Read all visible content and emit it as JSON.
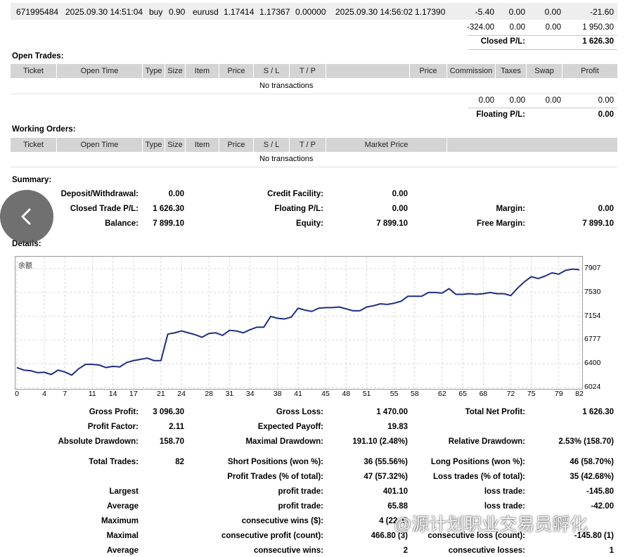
{
  "closed_row": {
    "ticket": "671995484",
    "open_time": "2025.09.30 14:51:04",
    "type": "buy",
    "size": "0.90",
    "item": "eurusd",
    "price": "1.17414",
    "sl": "1.17367",
    "tp": "0.00000",
    "close_time": "2025.09.30 14:56:02",
    "close_price": "1.17390",
    "commission": "-5.40",
    "taxes": "0.00",
    "swap": "0.00",
    "profit": "-21.60"
  },
  "closed_totals": {
    "commission": "-324.00",
    "taxes": "0.00",
    "swap": "0.00",
    "profit": "1 950.30",
    "pl_label": "Closed P/L:",
    "pl_value": "1 626.30"
  },
  "open_trades": {
    "title": "Open Trades:",
    "headers": [
      "Ticket",
      "Open Time",
      "Type",
      "Size",
      "Item",
      "Price",
      "S / L",
      "T / P",
      "",
      "Price",
      "Commission",
      "Taxes",
      "Swap",
      "Profit"
    ],
    "empty": "No transactions",
    "totals": {
      "commission": "0.00",
      "taxes": "0.00",
      "swap": "0.00",
      "profit": "0.00"
    },
    "floating_label": "Floating P/L:",
    "floating_value": "0.00"
  },
  "working_orders": {
    "title": "Working Orders:",
    "headers": [
      "Ticket",
      "Open Time",
      "Type",
      "Size",
      "Item",
      "Price",
      "S / L",
      "T / P",
      "Market Price"
    ],
    "empty": "No transactions"
  },
  "summary": {
    "title": "Summary:",
    "deposit_label": "Deposit/Withdrawal:",
    "deposit_value": "0.00",
    "credit_label": "Credit Facility:",
    "credit_value": "0.00",
    "closed_label": "Closed Trade P/L:",
    "closed_value": "1 626.30",
    "floating_label": "Floating P/L:",
    "floating_value": "0.00",
    "margin_label": "Margin:",
    "margin_value": "0.00",
    "balance_label": "Balance:",
    "balance_value": "7 899.10",
    "equity_label": "Equity:",
    "equity_value": "7 899.10",
    "free_margin_label": "Free Margin:",
    "free_margin_value": "7 899.10"
  },
  "details": {
    "title": "Details:"
  },
  "chart_data": {
    "type": "line",
    "title": "余额",
    "series": [
      {
        "values": [
          6340,
          6300,
          6290,
          6260,
          6265,
          6230,
          6300,
          6270,
          6220,
          6320,
          6390,
          6390,
          6380,
          6340,
          6360,
          6350,
          6420,
          6450,
          6470,
          6490,
          6450,
          6450,
          6870,
          6890,
          6920,
          6890,
          6860,
          6820,
          6880,
          6890,
          6850,
          6930,
          6920,
          6890,
          6940,
          6980,
          6980,
          7150,
          7120,
          7110,
          7140,
          7280,
          7250,
          7230,
          7280,
          7290,
          7290,
          7300,
          7270,
          7240,
          7240,
          7300,
          7320,
          7350,
          7340,
          7360,
          7390,
          7470,
          7470,
          7470,
          7530,
          7530,
          7520,
          7590,
          7500,
          7500,
          7510,
          7500,
          7510,
          7530,
          7510,
          7510,
          7480,
          7600,
          7700,
          7780,
          7750,
          7790,
          7840,
          7820,
          7880,
          7900,
          7890
        ]
      }
    ],
    "y_ticks": [
      "7907",
      "7530",
      "7154",
      "6777",
      "6400",
      "6024"
    ],
    "x_ticks": [
      "0",
      "4",
      "7",
      "11",
      "14",
      "17",
      "21",
      "24",
      "28",
      "31",
      "34",
      "38",
      "41",
      "45",
      "48",
      "51",
      "55",
      "58",
      "62",
      "65",
      "68",
      "72",
      "75",
      "79",
      "82"
    ],
    "xlim": [
      0,
      82
    ],
    "ylim": [
      6024,
      7907
    ],
    "grid": true,
    "color": "#1f2e82"
  },
  "stats": {
    "row1": [
      [
        "Gross Profit:",
        "3 096.30"
      ],
      [
        "Gross Loss:",
        "1 470.00"
      ],
      [
        "Total Net Profit:",
        "1 626.30"
      ]
    ],
    "row2": [
      [
        "Profit Factor:",
        "2.11"
      ],
      [
        "Expected Payoff:",
        "19.83"
      ]
    ],
    "row3": [
      [
        "Absolute Drawdown:",
        "158.70"
      ],
      [
        "Maximal Drawdown:",
        "191.10 (2.48%)"
      ],
      [
        "Relative Drawdown:",
        "2.53% (158.70)"
      ]
    ],
    "row4": [
      [
        "Total Trades:",
        "82"
      ],
      [
        "Short Positions (won %):",
        "36 (55.56%)"
      ],
      [
        "Long Positions (won %):",
        "46 (58.70%)"
      ]
    ],
    "row5": [
      [
        "Profit Trades (% of total):",
        "47 (57.32%)"
      ],
      [
        "Loss trades (% of total):",
        "35 (42.68%)"
      ]
    ],
    "row6": [
      "Largest",
      "profit trade:",
      "401.10",
      "loss trade:",
      "-145.80"
    ],
    "row7": [
      "Average",
      "profit trade:",
      "65.88",
      "loss trade:",
      "-42.00"
    ],
    "row8": [
      "Maximum",
      "consecutive wins ($):",
      "4 (22  .C",
      "",
      ""
    ],
    "row9": [
      "Maximal",
      "consecutive profit (count):",
      "466.80 (3)",
      "consecutive loss (count):",
      "-145.80 (1)"
    ],
    "row10": [
      "Average",
      "consecutive wins:",
      "2",
      "consecutive losses:",
      "1"
    ]
  },
  "watermark": "@源计划职业交易员孵化"
}
